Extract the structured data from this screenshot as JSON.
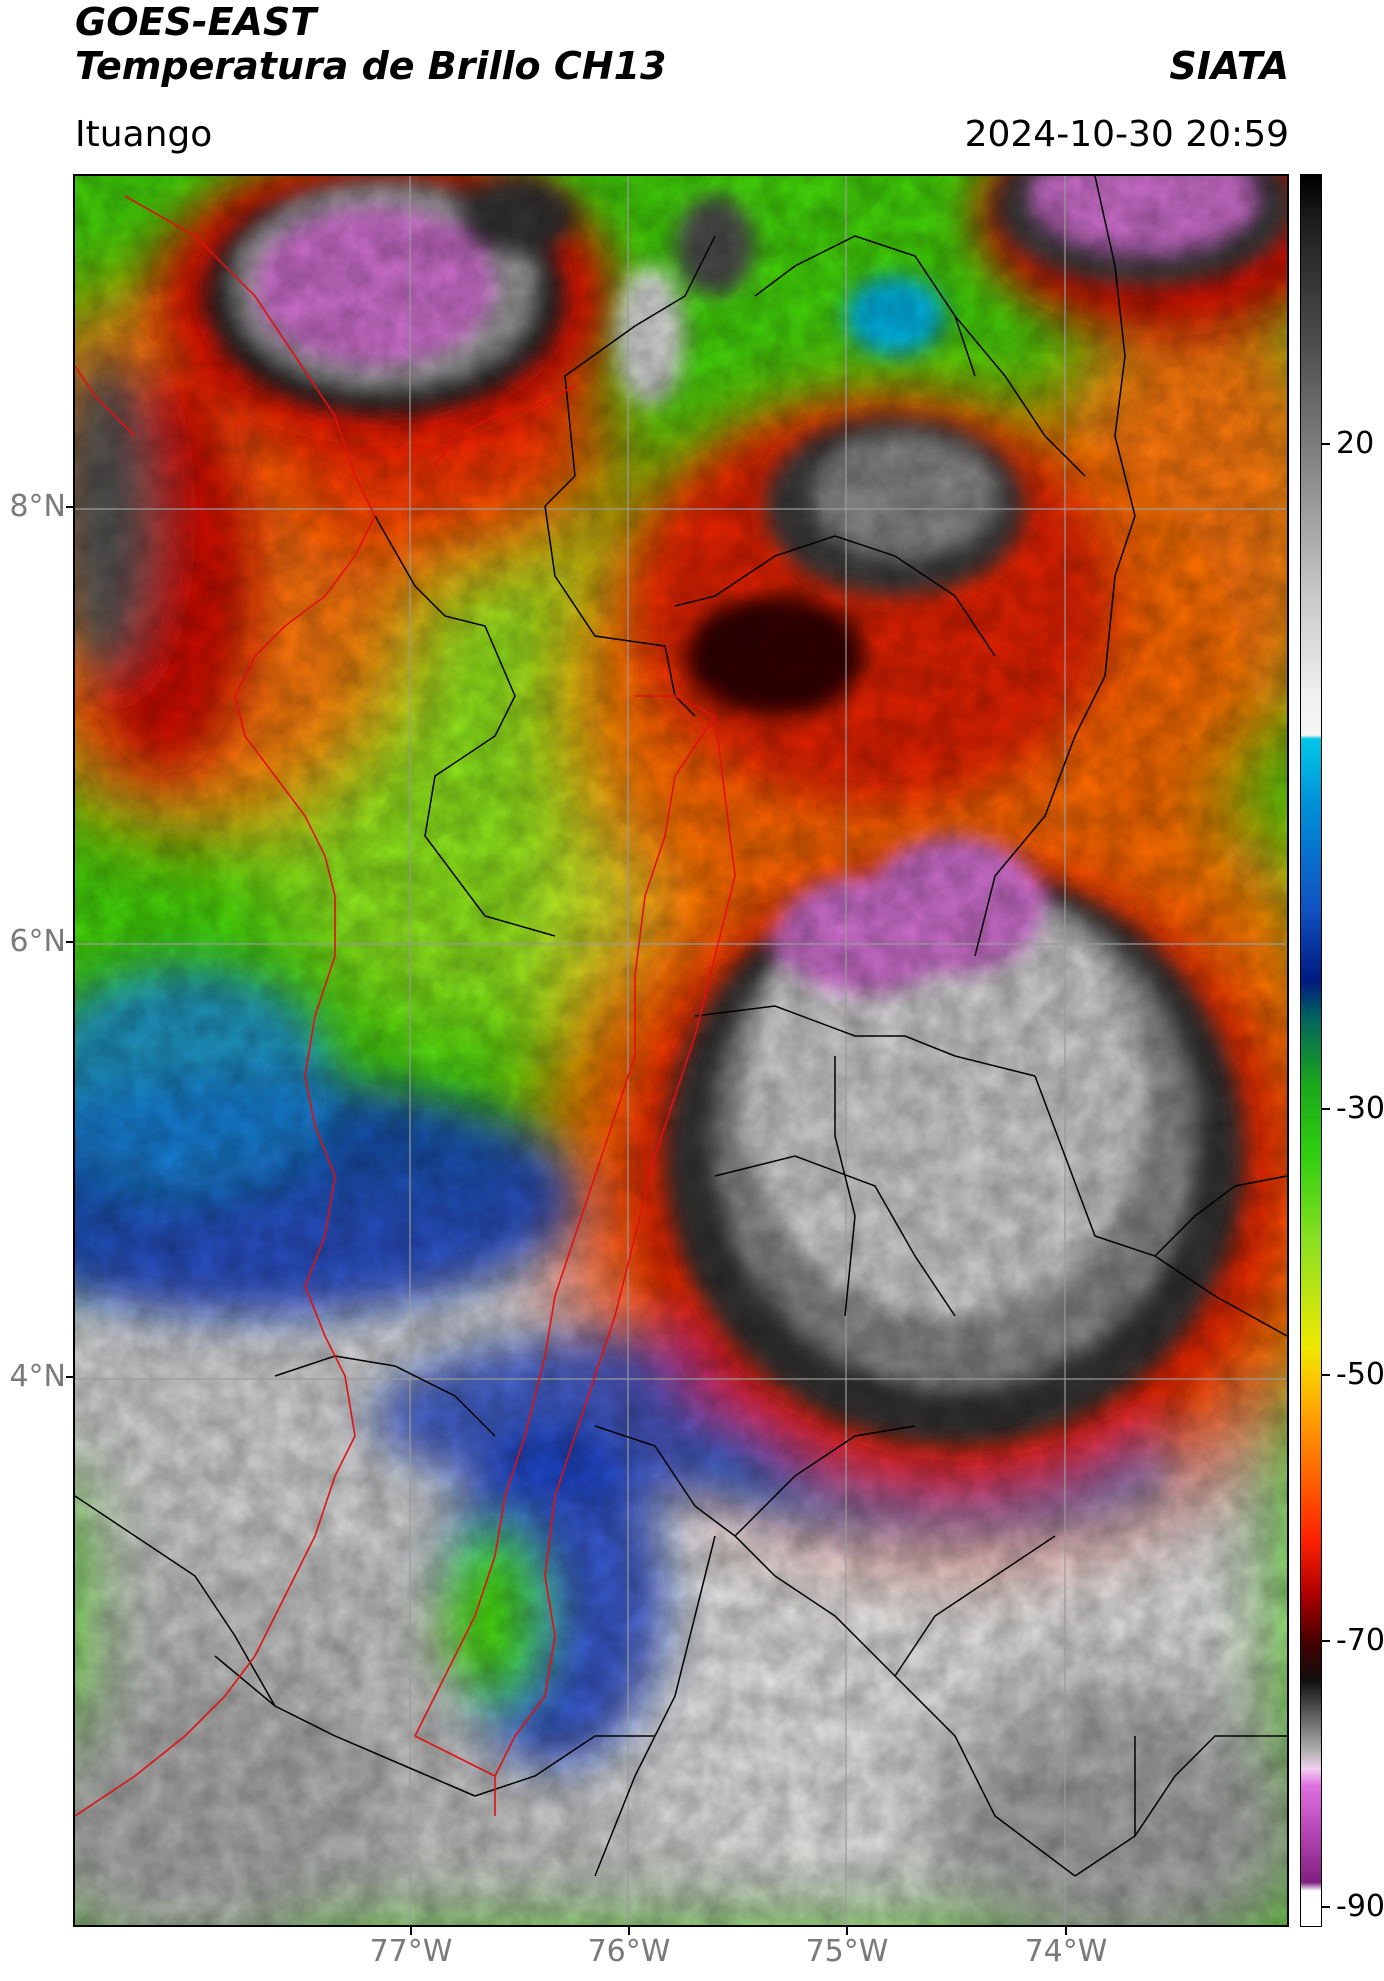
{
  "header": {
    "satellite": "GOES-EAST",
    "product": "Temperatura de Brillo CH13",
    "agency": "SIATA",
    "location": "Ituango",
    "datetime": "2024-10-30 20:59"
  },
  "map": {
    "lat_labels": [
      "8°N",
      "6°N",
      "4°N"
    ],
    "lon_labels": [
      "77°W",
      "76°W",
      "75°W",
      "74°W"
    ],
    "extent": {
      "lon_min": -78.55,
      "lon_max": -72.95,
      "lat_min": 2.45,
      "lat_max": 9.45
    }
  },
  "colorbar": {
    "ticks": [
      "20",
      "-30",
      "-50",
      "-70",
      "-90"
    ],
    "vmin": -90,
    "vmax": 40
  },
  "colors": {
    "frame": "#000000",
    "graticule": "#9a9a9a",
    "coastline": "#e01010",
    "borders": "#000000"
  }
}
